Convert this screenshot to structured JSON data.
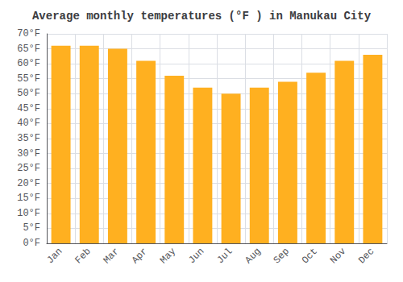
{
  "chart_data": {
    "type": "bar",
    "title": "Average monthly temperatures (°F ) in Manukau City",
    "categories": [
      "Jan",
      "Feb",
      "Mar",
      "Apr",
      "May",
      "Jun",
      "Jul",
      "Aug",
      "Sep",
      "Oct",
      "Nov",
      "Dec"
    ],
    "values": [
      66,
      66,
      65,
      61,
      56,
      52,
      50,
      52,
      54,
      57,
      61,
      63
    ],
    "color": "#FFB020",
    "ylim": [
      0,
      70
    ],
    "yticks": [
      {
        "value": 0,
        "label": "0°F"
      },
      {
        "value": 5,
        "label": "5°F"
      },
      {
        "value": 10,
        "label": "10°F"
      },
      {
        "value": 15,
        "label": "15°F"
      },
      {
        "value": 20,
        "label": "20°F"
      },
      {
        "value": 25,
        "label": "25°F"
      },
      {
        "value": 30,
        "label": "30°F"
      },
      {
        "value": 35,
        "label": "35°F"
      },
      {
        "value": 40,
        "label": "40°F"
      },
      {
        "value": 45,
        "label": "45°F"
      },
      {
        "value": 50,
        "label": "50°F"
      },
      {
        "value": 55,
        "label": "55°F"
      },
      {
        "value": 60,
        "label": "60°F"
      },
      {
        "value": 65,
        "label": "65°F"
      },
      {
        "value": 70,
        "label": "70°F"
      }
    ],
    "grid": true
  }
}
